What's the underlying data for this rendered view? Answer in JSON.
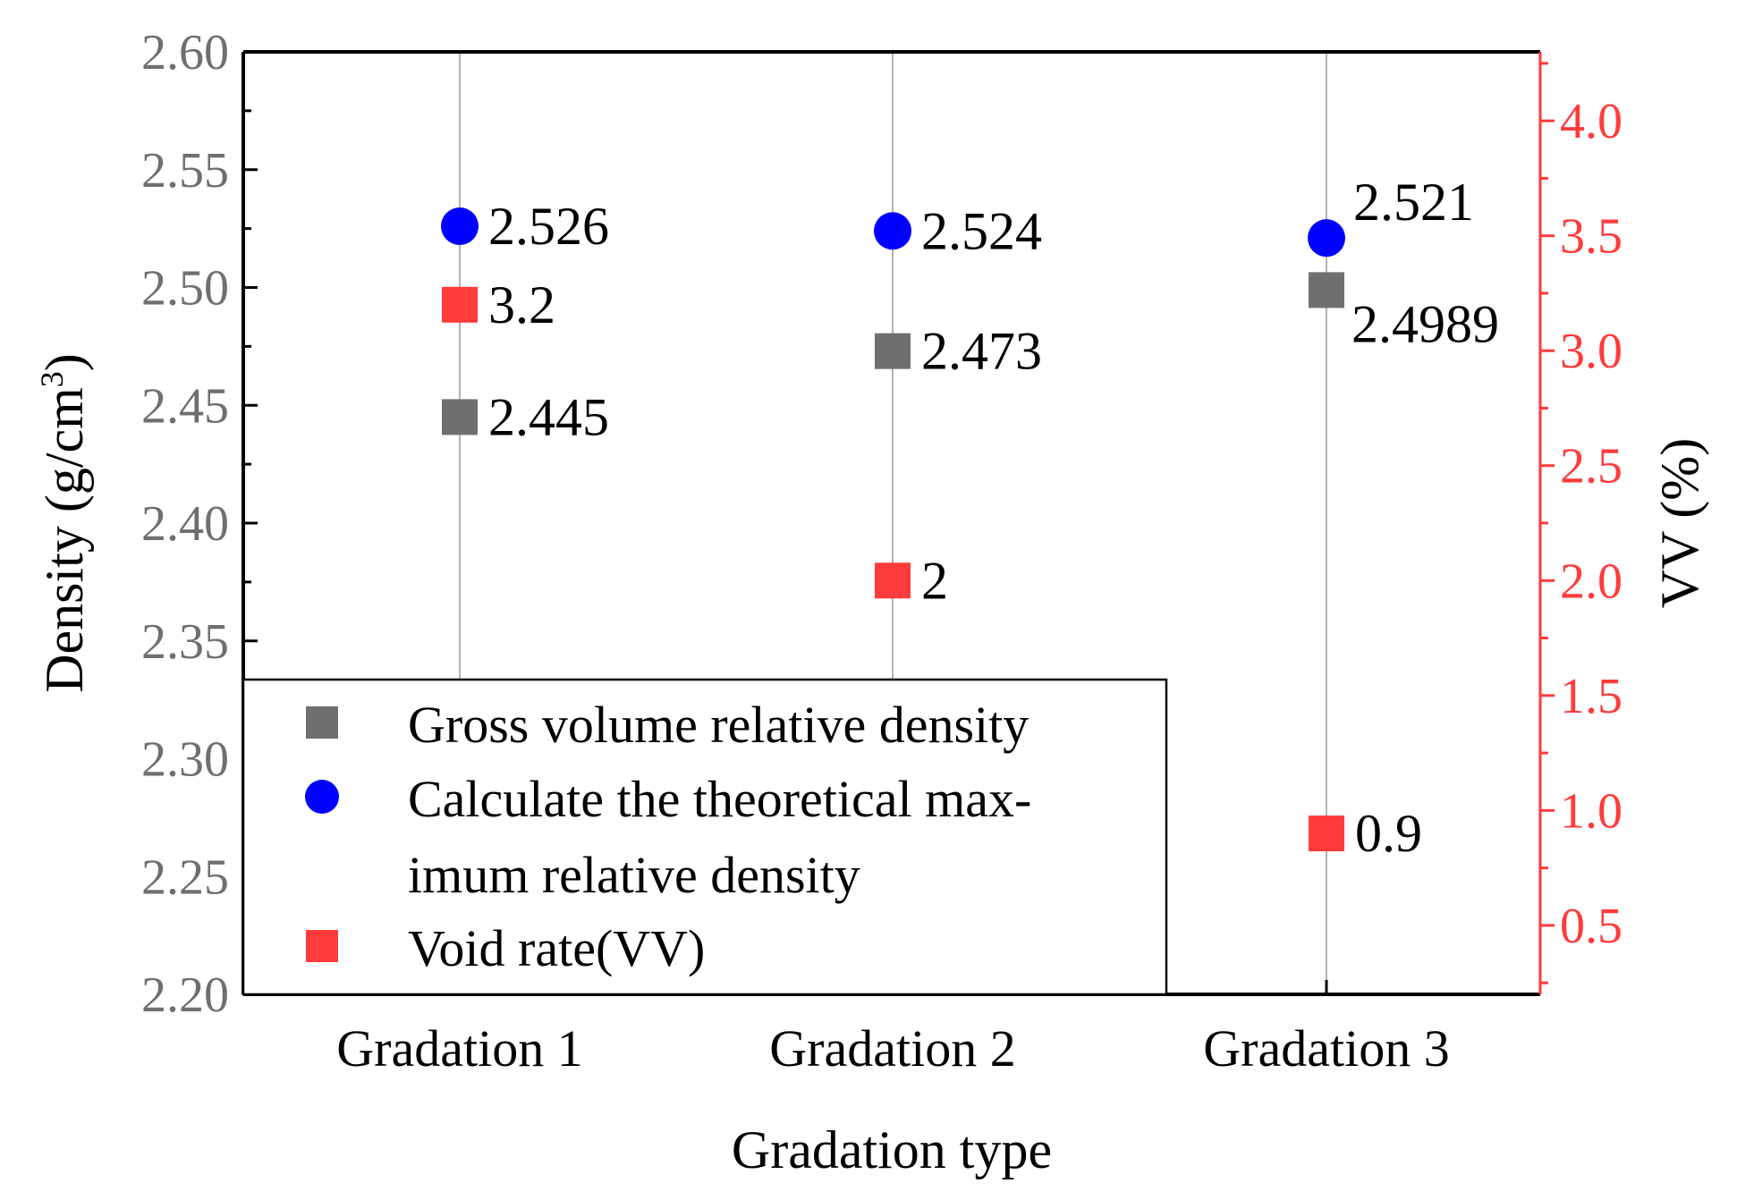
{
  "chart_data": {
    "type": "scatter",
    "xlabel": "Gradation type",
    "ylabel": "Density (g/cm",
    "ylabel_sup": "3",
    "ylabel_close": ")",
    "y2label": "VV (%)",
    "categories": [
      "Gradation 1",
      "Gradation 2",
      "Gradation 3"
    ],
    "ylim": [
      2.2,
      2.6
    ],
    "y2lim": [
      0.2,
      4.3
    ],
    "yticks": [
      "2.20",
      "2.25",
      "2.30",
      "2.35",
      "2.40",
      "2.45",
      "2.50",
      "2.55",
      "2.60"
    ],
    "y2ticks": [
      "0.5",
      "1.0",
      "1.5",
      "2.0",
      "2.5",
      "3.0",
      "3.5",
      "4.0"
    ],
    "series": [
      {
        "name": "Gross volume relative density",
        "axis": "left",
        "marker": "square",
        "color": "#6f6f6f",
        "values": [
          2.445,
          2.473,
          2.4989
        ],
        "labels": [
          "2.445",
          "2.473",
          "2.4989"
        ]
      },
      {
        "name": "Calculate the theoretical maximum relative density",
        "legend_lines": [
          "Calculate the theoretical max-",
          "imum relative density"
        ],
        "axis": "left",
        "marker": "circle",
        "color": "#0000ff",
        "values": [
          2.526,
          2.524,
          2.521
        ],
        "labels": [
          "2.526",
          "2.524",
          "2.521"
        ]
      },
      {
        "name": "Void rate(VV)",
        "axis": "right",
        "marker": "square",
        "color": "#ff3b3b",
        "values": [
          3.2,
          2.0,
          0.9
        ],
        "labels": [
          "3.2",
          "2",
          "0.9"
        ]
      }
    ],
    "legend_position": "bottom-left",
    "grid": "vertical"
  },
  "colors": {
    "left_tick": "#6f6f6f",
    "right_axis": "#ff3b3b"
  }
}
